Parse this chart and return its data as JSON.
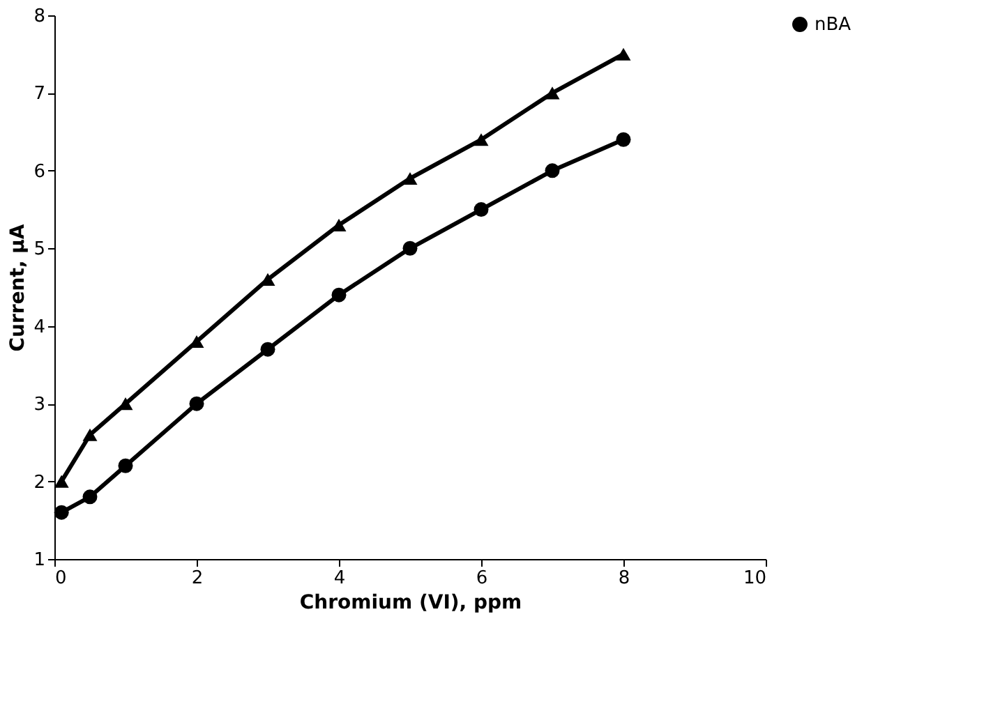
{
  "chart_data": {
    "type": "line",
    "xlabel": "Chromium (VI), ppm",
    "ylabel": "Current, µA",
    "x": [
      0.1,
      0.5,
      1,
      2,
      3,
      4,
      5,
      6,
      7,
      8
    ],
    "series": [
      {
        "name": "nBA",
        "color": "#000000",
        "marker": "circle",
        "values": [
          1.6,
          1.8,
          2.2,
          3.0,
          3.7,
          4.4,
          5.0,
          5.5,
          6.0,
          6.4
        ]
      },
      {
        "color": "#000000",
        "marker": "triangle",
        "values": [
          2.0,
          2.6,
          3.0,
          3.8,
          4.6,
          5.3,
          5.9,
          6.4,
          7.0,
          7.5
        ]
      }
    ],
    "xlim": [
      0,
      10
    ],
    "xticks": [
      0,
      2,
      4,
      6,
      8,
      10
    ],
    "ylim": [
      1,
      8
    ],
    "yticks": [
      1,
      2,
      3,
      4,
      5,
      6,
      7,
      8
    ],
    "grid": false,
    "legend": "top right",
    "line_style": "solid"
  }
}
